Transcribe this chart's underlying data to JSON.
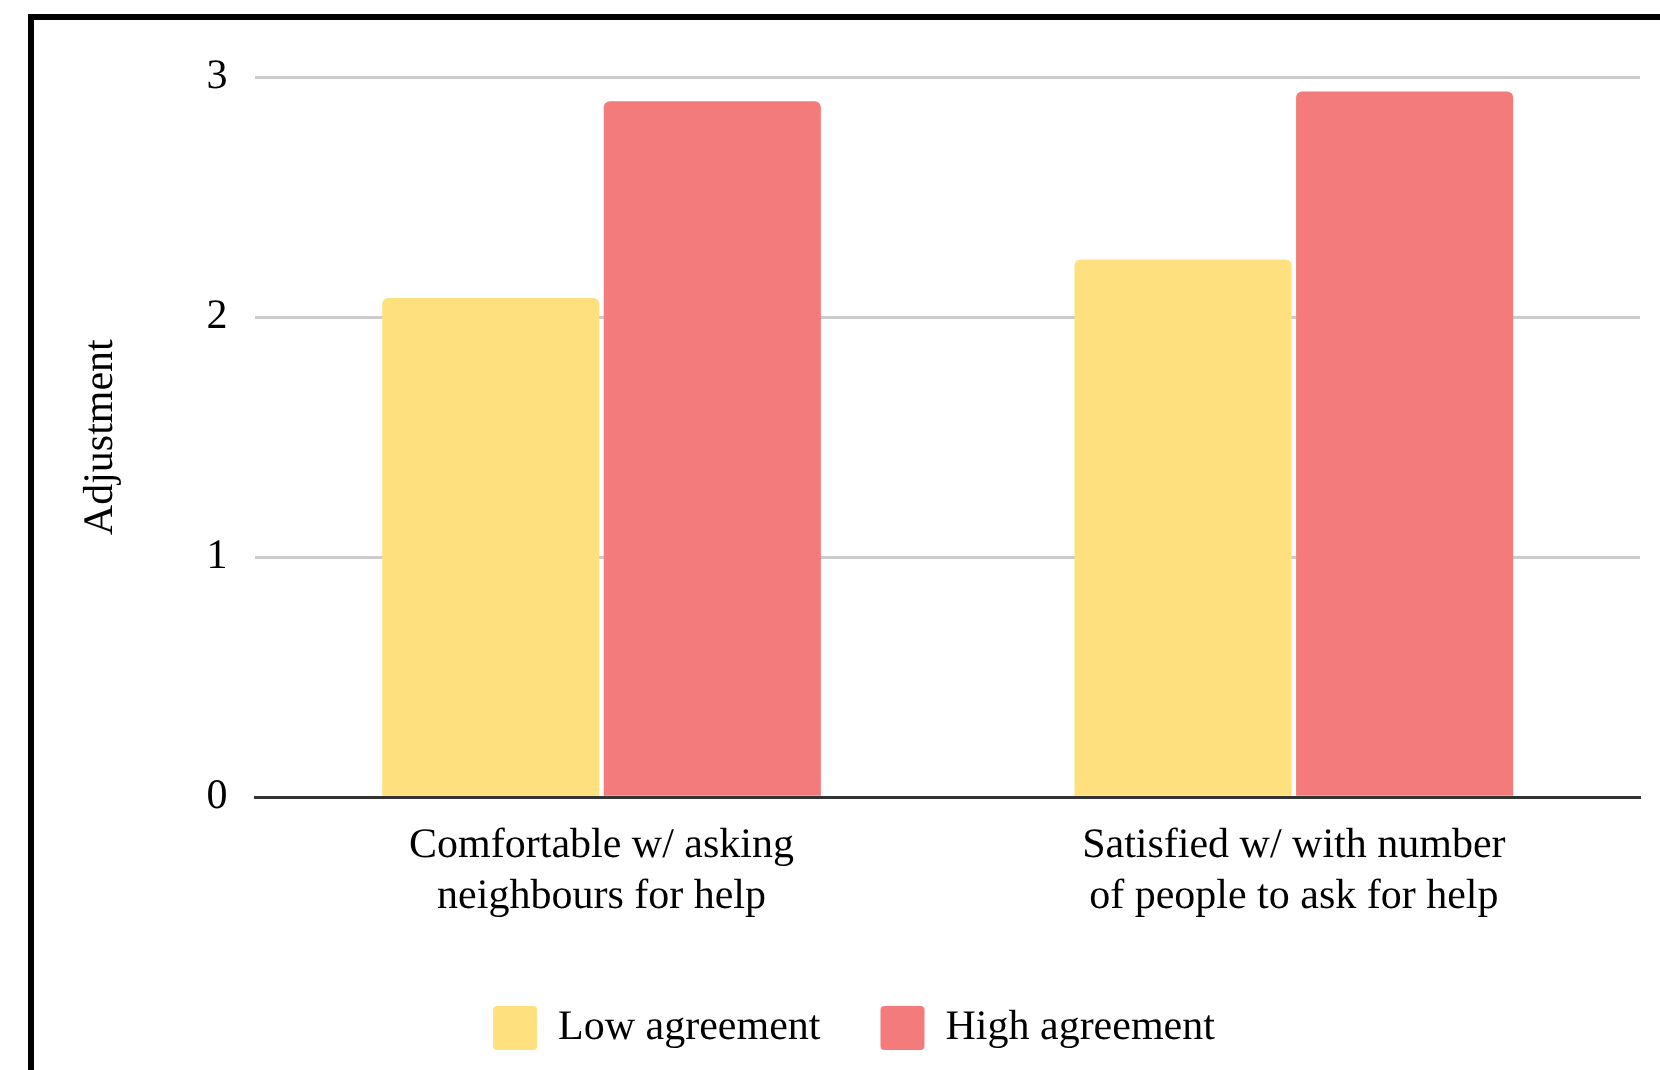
{
  "chart_data": {
    "type": "bar",
    "ylabel": "Adjustment",
    "categories": [
      "Comfortable w/ asking neighbours for help",
      "Satisfied w/ with number of people to ask for help"
    ],
    "series": [
      {
        "name": "Low agreement",
        "color": "#ffe07f",
        "values": [
          2.08,
          2.24
        ]
      },
      {
        "name": "High agreement",
        "color": "#f47b7b",
        "values": [
          2.9,
          2.94
        ]
      }
    ],
    "ylim": [
      0,
      3
    ],
    "yticks": [
      0,
      1,
      2,
      3
    ],
    "grid": "y",
    "legend": "bottom"
  }
}
